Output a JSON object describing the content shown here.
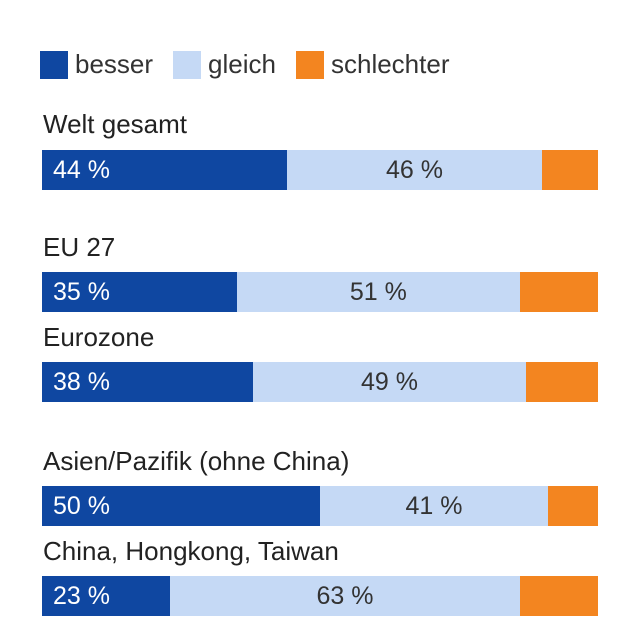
{
  "colors": {
    "besser": "#0f47a1",
    "gleich": "#c5d9f5",
    "schlechter": "#f38520"
  },
  "legend": [
    {
      "key": "besser",
      "label": "besser"
    },
    {
      "key": "gleich",
      "label": "gleich"
    },
    {
      "key": "schlechter",
      "label": "schlechter"
    }
  ],
  "chart_data": {
    "type": "bar",
    "orientation": "horizontal",
    "stacked": true,
    "unit": "%",
    "categories": [
      "Welt gesamt",
      "EU 27",
      "Eurozone",
      "Asien/Pazifik (ohne China)",
      "China, Hongkong, Taiwan"
    ],
    "series": [
      {
        "name": "besser",
        "values": [
          44,
          35,
          38,
          50,
          23
        ]
      },
      {
        "name": "gleich",
        "values": [
          46,
          51,
          49,
          41,
          63
        ]
      },
      {
        "name": "schlechter",
        "values": [
          10,
          14,
          13,
          9,
          14
        ]
      }
    ],
    "data_labels": {
      "besser": [
        "44 %",
        "35 %",
        "38 %",
        "50 %",
        "23 %"
      ],
      "gleich": [
        "46 %",
        "51 %",
        "49 %",
        "41 %",
        "63 %"
      ]
    },
    "xlim": [
      0,
      100
    ],
    "grid": false,
    "legend_position": "top-left"
  }
}
